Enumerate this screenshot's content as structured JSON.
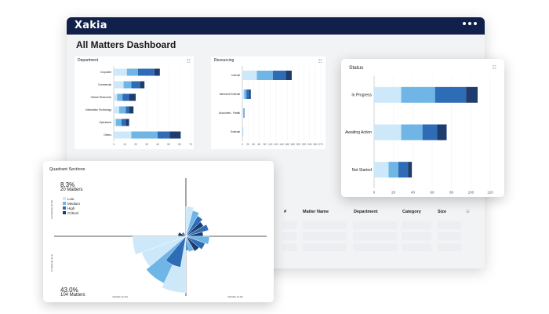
{
  "app": {
    "logo_text": "Xakia",
    "title": "All Matters Dashboard"
  },
  "colors": {
    "navy": "#11204a",
    "c1": "#cde8f8",
    "c2": "#6fb6e6",
    "c3": "#2e6db5",
    "c4": "#1f3c6e",
    "accent": "#f2f3f5"
  },
  "icons": {
    "menu": "more-horizontal-icon",
    "chart_options": "bar-chart-icon",
    "table_options": "filter-lines-icon"
  },
  "chart_data": [
    {
      "type": "bar",
      "title": "Department",
      "orientation": "horizontal",
      "categories": [
        "Corporate",
        "Commercial",
        "Human Resources",
        "Information Technology",
        "Operations",
        "Others"
      ],
      "series": [
        {
          "values": [
            12,
            9,
            3,
            5,
            2,
            16
          ]
        },
        {
          "values": [
            10,
            7,
            5,
            6,
            5,
            24
          ]
        },
        {
          "values": [
            15,
            8,
            6,
            3,
            4,
            11
          ]
        },
        {
          "values": [
            5,
            4,
            6,
            4,
            3,
            10
          ]
        }
      ],
      "xticks": [
        "0",
        "10",
        "20",
        "30",
        "40",
        "50",
        "60",
        "70"
      ],
      "xlim": [
        0,
        70
      ]
    },
    {
      "type": "bar",
      "title": "Resourcing",
      "orientation": "horizontal",
      "categories": [
        "Internal",
        "Internal & External",
        "Accounted - Partial",
        "External"
      ],
      "series": [
        {
          "values": [
            50,
            6,
            3,
            2
          ]
        },
        {
          "values": [
            55,
            8,
            2,
            1
          ]
        },
        {
          "values": [
            45,
            10,
            2,
            0
          ]
        },
        {
          "values": [
            20,
            5,
            0,
            0
          ]
        }
      ],
      "xticks": [
        "0",
        "20",
        "40",
        "60",
        "80",
        "100",
        "120",
        "140",
        "160",
        "180",
        "200",
        "220",
        "240",
        "260",
        "270"
      ],
      "xlim": [
        0,
        270
      ]
    },
    {
      "type": "bar",
      "title": "Status",
      "orientation": "horizontal",
      "categories": [
        "In Progress",
        "Awaiting Action",
        "Not Started"
      ],
      "series": [
        {
          "values": [
            28,
            28,
            15
          ]
        },
        {
          "values": [
            35,
            22,
            10
          ]
        },
        {
          "values": [
            32,
            15,
            10
          ]
        },
        {
          "values": [
            12,
            10,
            4
          ]
        }
      ],
      "xticks": [
        "0",
        "20",
        "40",
        "60",
        "80",
        "100",
        "120"
      ],
      "xlim": [
        0,
        120
      ]
    },
    {
      "type": "pie",
      "title": "Quadrant Sections",
      "legend": [
        "Low",
        "Medium",
        "High",
        "Critical"
      ],
      "annotations": [
        {
          "pct": "8.3%",
          "matters": "20 Matters"
        },
        {
          "pct": "43.0%",
          "matters": "104 Matters"
        }
      ],
      "axis_labels": {
        "y_top": "Complexity (0-10)",
        "y_bottom": "Complexity (0-3)",
        "x_left": "Variable (0-10)",
        "x_right": "Variable (0-10)"
      }
    }
  ],
  "table": {
    "headers": [
      "#",
      "Matter Name",
      "Department",
      "Category",
      "Size"
    ]
  }
}
